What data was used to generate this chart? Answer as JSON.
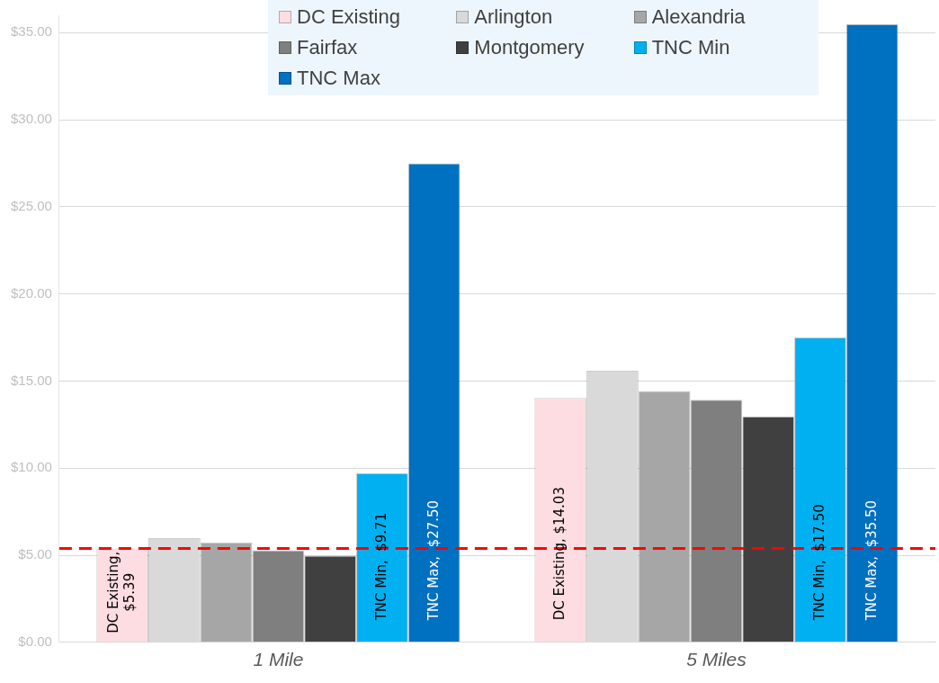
{
  "chart_data": {
    "type": "bar",
    "categories": [
      "1 Mile",
      "5 Miles"
    ],
    "series": [
      {
        "name": "DC Existing",
        "color": "#fddde1",
        "values": [
          5.39,
          14.03
        ],
        "value_labels": [
          "DC Existing, $5.39",
          "DC Existing, $14.03"
        ]
      },
      {
        "name": "Arlington",
        "color": "#d9d9d9",
        "values": [
          5.98,
          15.59
        ]
      },
      {
        "name": "Alexandria",
        "color": "#a6a6a6",
        "values": [
          5.73,
          14.43
        ]
      },
      {
        "name": "Fairfax",
        "color": "#7f7f7f",
        "values": [
          5.28,
          13.93
        ]
      },
      {
        "name": "Montgomery",
        "color": "#404040",
        "values": [
          4.98,
          12.97
        ]
      },
      {
        "name": "TNC Min",
        "color": "#00b0f0",
        "values": [
          9.71,
          17.5
        ],
        "value_labels": [
          "TNC Min,  $9.71",
          "TNC Min,  $17.50"
        ]
      },
      {
        "name": "TNC Max",
        "color": "#0070c0",
        "values": [
          27.5,
          35.5
        ],
        "value_labels": [
          "TNC Max,  $27.50",
          "TNC Max,  $35.50"
        ]
      }
    ],
    "ylim": [
      0,
      36
    ],
    "yticks": [
      {
        "value": 0,
        "label": "$0.00"
      },
      {
        "value": 5,
        "label": "$5.00"
      },
      {
        "value": 10,
        "label": "$10.00"
      },
      {
        "value": 15,
        "label": "$15.00"
      },
      {
        "value": 20,
        "label": "$20.00"
      },
      {
        "value": 25,
        "label": "$25.00"
      },
      {
        "value": 30,
        "label": "$30.00"
      },
      {
        "value": 35,
        "label": "$35.00"
      }
    ],
    "ref_lines": [
      {
        "axis": "y",
        "value": 5.39,
        "color": "#ff0000",
        "line_style": "dashed"
      }
    ],
    "grid": "y",
    "legend": "top"
  }
}
